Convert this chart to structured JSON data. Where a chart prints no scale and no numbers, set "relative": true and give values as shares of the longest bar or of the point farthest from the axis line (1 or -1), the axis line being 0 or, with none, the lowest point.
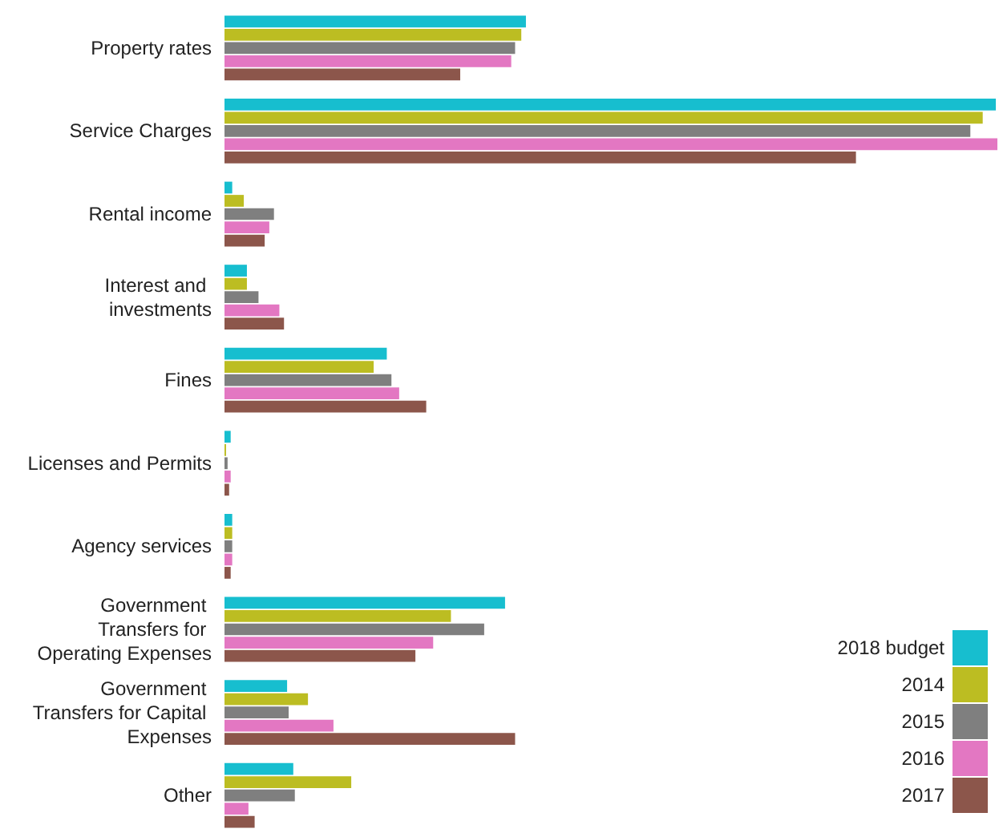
{
  "chart_data": {
    "type": "bar",
    "orientation": "horizontal",
    "relative": true,
    "legend": "bottom right",
    "categories": [
      "Property rates",
      "Service Charges",
      "Rental income",
      "Interest and investments",
      "Fines",
      "Licenses and Permits",
      "Agency services",
      "Government Transfers for Operating Expenses",
      "Government Transfers for Capital Expenses",
      "Other"
    ],
    "series": [
      {
        "name": "2018 budget",
        "color": "#17becf",
        "values": [
          0.39,
          0.998,
          0.01,
          0.029,
          0.21,
          0.008,
          0.01,
          0.363,
          0.081,
          0.089
        ]
      },
      {
        "name": "2014",
        "color": "#bcbd22",
        "values": [
          0.384,
          0.981,
          0.025,
          0.029,
          0.193,
          0.002,
          0.01,
          0.293,
          0.108,
          0.164
        ]
      },
      {
        "name": "2015",
        "color": "#7f7f7f",
        "values": [
          0.376,
          0.965,
          0.064,
          0.044,
          0.216,
          0.004,
          0.01,
          0.336,
          0.083,
          0.091
        ]
      },
      {
        "name": "2016",
        "color": "#e377c2",
        "values": [
          0.371,
          1,
          0.058,
          0.071,
          0.226,
          0.008,
          0.01,
          0.27,
          0.141,
          0.031
        ]
      },
      {
        "name": "2017",
        "color": "#8c564b",
        "values": [
          0.305,
          0.817,
          0.052,
          0.077,
          0.261,
          0.006,
          0.008,
          0.247,
          0.376,
          0.039
        ]
      }
    ]
  }
}
